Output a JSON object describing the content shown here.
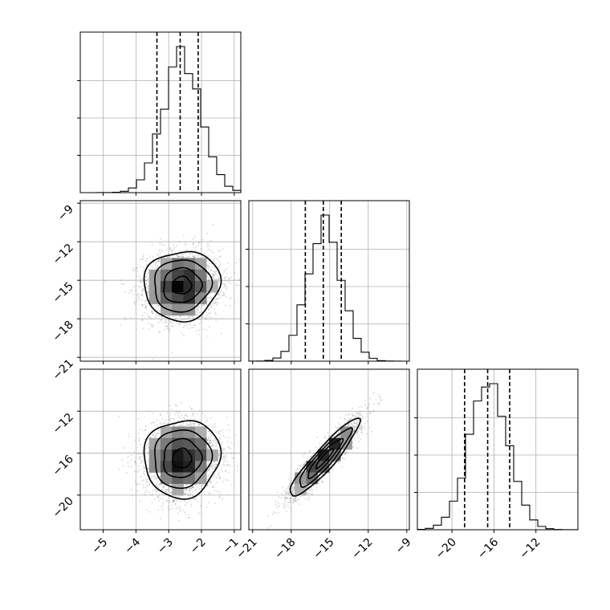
{
  "chart_data": {
    "type": "corner",
    "grid": true,
    "parameters": [
      {
        "index": 0,
        "mean": -2.6,
        "sd": 0.58,
        "range": [
          -5.7,
          -0.8
        ],
        "quantiles": [
          -3.36,
          -2.65,
          -2.1
        ],
        "ticks": [
          -5,
          -4,
          -3,
          -2,
          -1
        ]
      },
      {
        "index": 1,
        "mean": -15.4,
        "sd": 1.35,
        "range": [
          -21.3,
          -8.8
        ],
        "quantiles": [
          -16.9,
          -15.5,
          -14.1
        ],
        "ticks": [
          -21,
          -18,
          -15,
          -12,
          -9
        ]
      },
      {
        "index": 2,
        "mean": -16.5,
        "sd": 1.85,
        "range": [
          -23.3,
          -8.0
        ],
        "quantiles": [
          -18.8,
          -16.6,
          -14.5
        ],
        "ticks": [
          -20,
          -16,
          -12
        ]
      }
    ],
    "correlations": {
      "0-1": 0.05,
      "0-2": 0.05,
      "1-2": 0.92
    },
    "y_ticks": {
      "row1": [
        -9,
        -12,
        -15,
        -18,
        -21
      ],
      "row2": [
        -12,
        -16,
        -20
      ]
    },
    "histogram_ylim_fraction": 1.0
  }
}
